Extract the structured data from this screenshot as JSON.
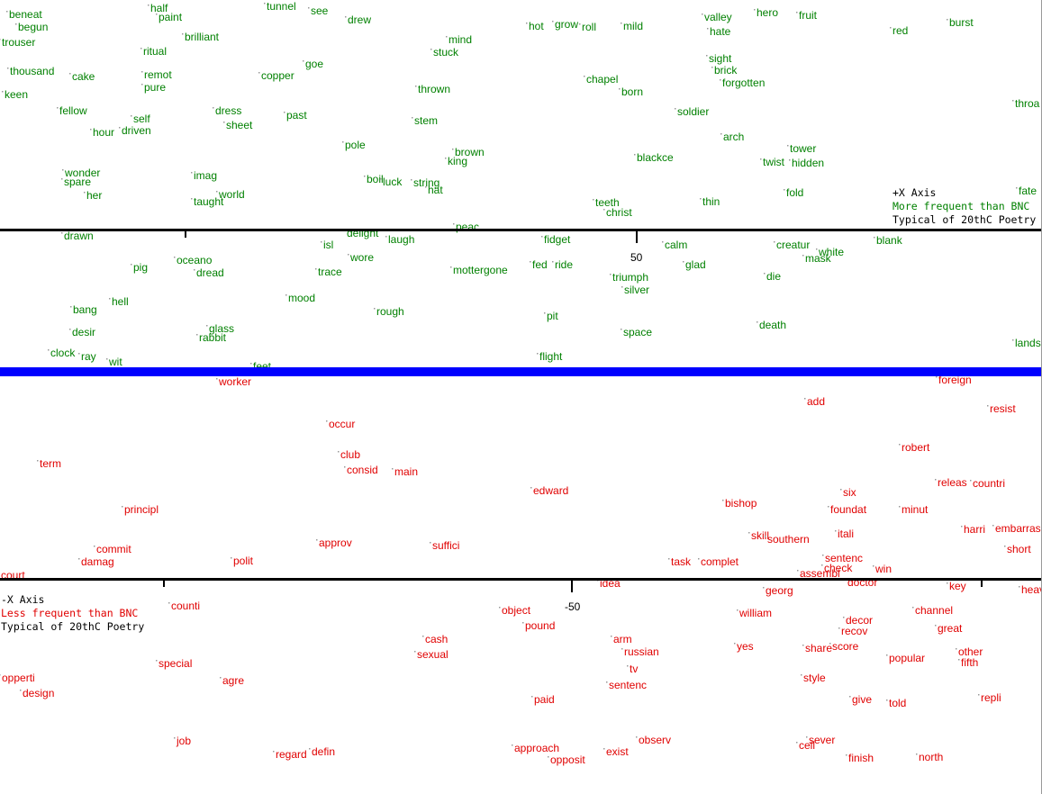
{
  "colors": {
    "more": "#008000",
    "less": "#e00000",
    "divider": "#0000ff",
    "axis": "#000000"
  },
  "top_panel": {
    "axis_name": "+X Axis",
    "subtitle": "More frequent than BNC",
    "caption": "Typical of 20thC Poetry",
    "tick_label": "50"
  },
  "bottom_panel": {
    "axis_name": "-X Axis",
    "subtitle": "Less frequent than BNC",
    "caption": "Typical of 20thC Poetry",
    "tick_label": "-50"
  },
  "chart_data": {
    "type": "scatter",
    "title": "",
    "xlabel": "",
    "ylabel": "",
    "series": [
      {
        "name": "More frequent than BNC",
        "words": [
          "half",
          "tunnel",
          "see",
          "drew",
          "paint",
          "begun",
          "trouser",
          "brilliant",
          "mind",
          "hot",
          "grow",
          "roll",
          "mild",
          "valley",
          "hero",
          "fruit",
          "hate",
          "red",
          "burst",
          "ritual",
          "stuck",
          "goe",
          "sight",
          "brick",
          "thousand",
          "cake",
          "remot",
          "copper",
          "chapel",
          "pure",
          "forgotten",
          "keen",
          "thrown",
          "born",
          "fellow",
          "dress",
          "past",
          "soldier",
          "self",
          "sheet",
          "stem",
          "throa",
          "hour",
          "driven",
          "arch",
          "pole",
          "tower",
          "brown",
          "blackce",
          "twist",
          "hidden",
          "king",
          "wonder",
          "spare",
          "imag",
          "boil",
          "luck",
          "string",
          "hat",
          "her",
          "world",
          "taught",
          "fold",
          "fate",
          "teeth",
          "christ",
          "thin",
          "drawn",
          "isl",
          "laugh",
          "peac",
          "delight",
          "fidget",
          "calm",
          "creatur",
          "blank",
          "oceano",
          "pig",
          "wore",
          "mottergone",
          "fed",
          "ride",
          "glad",
          "mask",
          "white",
          "dread",
          "trace",
          "triumph",
          "die",
          "silver",
          "hell",
          "mood",
          "bang",
          "rough",
          "pit",
          "glass",
          "rabbit",
          "desir",
          "space",
          "death",
          "clock",
          "ray",
          "wit",
          "flight",
          "feet",
          "landscap",
          "beneat"
        ]
      },
      {
        "name": "Less frequent than BNC",
        "words": [
          "worker",
          "foreign",
          "add",
          "resist",
          "occur",
          "club",
          "consid",
          "main",
          "robert",
          "term",
          "edward",
          "releas",
          "countri",
          "six",
          "bishop",
          "principl",
          "foundat",
          "minut",
          "harri",
          "embarrass",
          "commit",
          "approv",
          "suffici",
          "skill",
          "southern",
          "itali",
          "damag",
          "polit",
          "task",
          "complet",
          "sentenc",
          "check",
          "win",
          "short",
          "idea",
          "assembl",
          "doctor",
          "key",
          "court",
          "counti",
          "object",
          "georg",
          "william",
          "channel",
          "heav",
          "pound",
          "decor",
          "recov",
          "great",
          "cash",
          "sexual",
          "arm",
          "russian",
          "yes",
          "share",
          "score",
          "popular",
          "other",
          "fifth",
          "special",
          "agre",
          "tv",
          "style",
          "opperti",
          "design",
          "paid",
          "sentenc",
          "give",
          "told",
          "repli",
          "job",
          "observ",
          "sever",
          "cell",
          "regard",
          "defin",
          "approach",
          "exist",
          "opposit",
          "finish",
          "north"
        ]
      }
    ]
  }
}
